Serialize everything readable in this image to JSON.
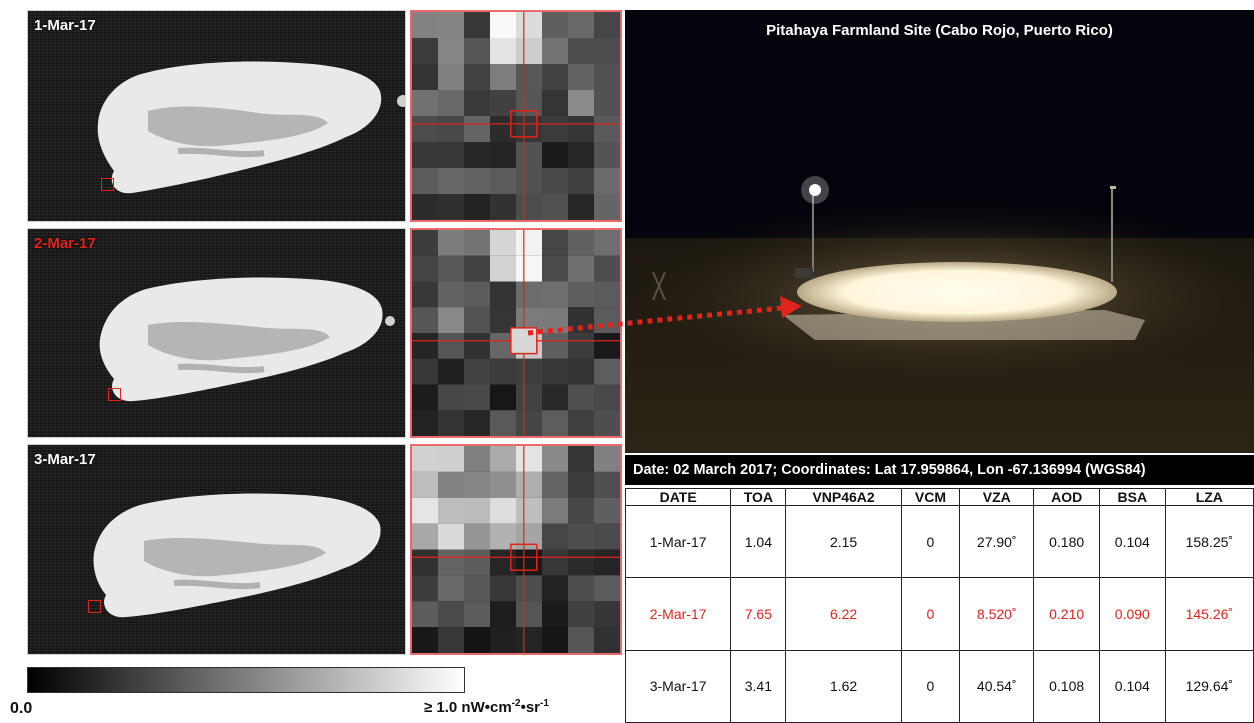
{
  "panels": [
    {
      "date": "1-Mar-17",
      "highlight": false
    },
    {
      "date": "2-Mar-17",
      "highlight": true
    },
    {
      "date": "3-Mar-17",
      "highlight": false
    }
  ],
  "photo": {
    "title": "Pitahaya Farmland Site (Cabo Rojo, Puerto Rico)",
    "caption": "Date: 02 March 2017; Coordinates: Lat 17.959864, Lon -67.136994 (WGS84)"
  },
  "table": {
    "headers": [
      "DATE",
      "TOA",
      "VNP46A2",
      "VCM",
      "VZA",
      "AOD",
      "BSA",
      "LZA"
    ],
    "rows": [
      [
        "1-Mar-17",
        "1.04",
        "2.15",
        "0",
        "27.90˚",
        "0.180",
        "0.104",
        "158.25˚"
      ],
      [
        "2-Mar-17",
        "7.65",
        "6.22",
        "0",
        "8.520˚",
        "0.210",
        "0.090",
        "145.26˚"
      ],
      [
        "3-Mar-17",
        "3.41",
        "1.62",
        "0",
        "40.54˚",
        "0.108",
        "0.104",
        "129.64˚"
      ]
    ],
    "highlight_row": 1,
    "highlight_color": "#e0241b"
  },
  "colorbar": {
    "min_label": "0.0",
    "max_label": "≥ 1.0 nW•cm",
    "max_exp1": "-2",
    "max_mid": "•sr",
    "max_exp2": "-1"
  }
}
